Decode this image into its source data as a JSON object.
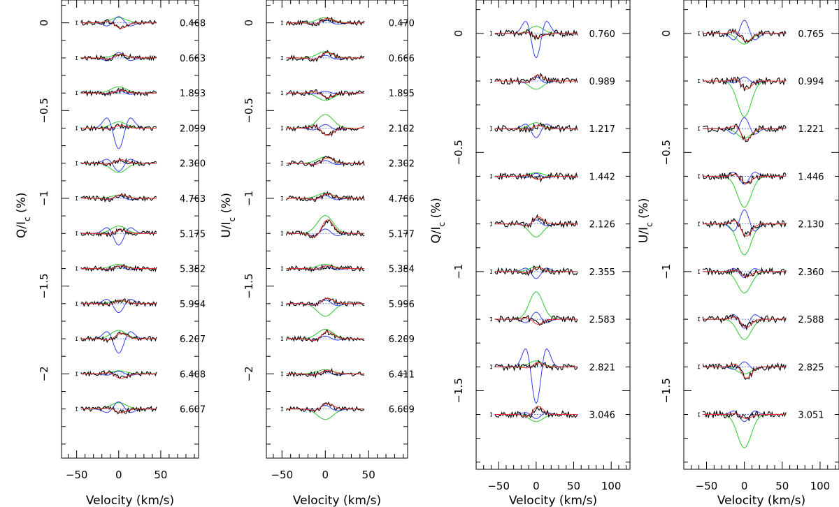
{
  "figure": {
    "xlabel": "Velocity (km/s)",
    "colors": {
      "observed": "#000000",
      "model_red": "#e8302a",
      "model_green": "#2ec62e",
      "model_blue": "#3040e8",
      "zero_line": "#4060e0"
    }
  },
  "chart_data": [
    {
      "type": "line",
      "title": "",
      "xlabel": "Velocity (km/s)",
      "ylabel": "Q/I",
      "ylabel_sub": "c",
      "ylabel_suffix": " (%)",
      "xlim": [
        -68,
        95
      ],
      "ylim": [
        -2.48,
        0.13
      ],
      "x_ticks": [
        -50,
        0,
        50
      ],
      "x_tick_labels": [
        "−50",
        "0",
        "50"
      ],
      "y_ticks": [
        0,
        -0.5,
        -1,
        -1.5,
        -2
      ],
      "y_tick_labels": [
        "0",
        "−0.5",
        "−1",
        "−1.5",
        "−2"
      ],
      "profile_range": [
        -45,
        45
      ],
      "offset_step": -0.2,
      "amplitude_scale": 0.06,
      "label_x": 88,
      "phases": [
        "0.468",
        "0.663",
        "1.893",
        "2.099",
        "2.300",
        "4.763",
        "5.175",
        "5.382",
        "5.994",
        "6.207",
        "6.408",
        "6.607"
      ],
      "blue_amp": [
        0.7,
        0.6,
        0.3,
        -2.3,
        -0.9,
        0.3,
        -1.3,
        0.3,
        -1.0,
        -1.6,
        0.3,
        0.8
      ],
      "green_amp": [
        0.5,
        0.3,
        0.6,
        0.6,
        -0.9,
        0.3,
        0.7,
        0.4,
        0.3,
        0.8,
        0.3,
        0.6
      ],
      "red_amp": [
        -0.6,
        0.4,
        0.3,
        0.3,
        0.4,
        0.4,
        0.4,
        0.3,
        0.4,
        0.6,
        -0.5,
        -0.4
      ]
    },
    {
      "type": "line",
      "title": "",
      "xlabel": "Velocity (km/s)",
      "ylabel": "U/I",
      "ylabel_sub": "c",
      "ylabel_suffix": " (%)",
      "xlim": [
        -68,
        95
      ],
      "ylim": [
        -2.48,
        0.13
      ],
      "x_ticks": [
        -50,
        0,
        50
      ],
      "x_tick_labels": [
        "−50",
        "0",
        "50"
      ],
      "y_ticks": [
        0,
        -0.5,
        -1,
        -1.5,
        -2
      ],
      "y_tick_labels": [
        "0",
        "−0.5",
        "−1",
        "−1.5",
        "−2"
      ],
      "profile_range": [
        -45,
        45
      ],
      "offset_step": -0.2,
      "amplitude_scale": 0.06,
      "label_x": 88,
      "phases": [
        "0.470",
        "0.666",
        "1.895",
        "2.102",
        "2.302",
        "4.766",
        "5.177",
        "5.384",
        "5.996",
        "6.209",
        "6.411",
        "6.609"
      ],
      "blue_amp": [
        0.3,
        0.3,
        0.2,
        0.4,
        0.3,
        0.3,
        0.5,
        0.3,
        0.4,
        0.3,
        0.3,
        0.4
      ],
      "green_amp": [
        0.5,
        0.6,
        -0.7,
        1.3,
        0.6,
        0.5,
        1.7,
        0.4,
        -1.2,
        0.9,
        0.4,
        -1.0
      ],
      "red_amp": [
        0.5,
        0.6,
        -0.5,
        -0.8,
        0.6,
        0.5,
        1.5,
        0.3,
        0.6,
        0.8,
        0.4,
        0.6
      ]
    },
    {
      "type": "line",
      "title": "",
      "xlabel": "Velocity (km/s)",
      "ylabel": "Q/I",
      "ylabel_sub": "c",
      "ylabel_suffix": " (%)",
      "xlim": [
        -80,
        125
      ],
      "ylim": [
        -1.83,
        0.14
      ],
      "x_ticks": [
        -50,
        0,
        50,
        100
      ],
      "x_tick_labels": [
        "−50",
        "0",
        "50",
        "100"
      ],
      "y_ticks": [
        0,
        -0.5,
        -1,
        -1.5
      ],
      "y_tick_labels": [
        "0",
        "−0.5",
        "−1",
        "−1.5"
      ],
      "profile_range": [
        -55,
        55
      ],
      "offset_step": -0.2,
      "amplitude_scale": 0.05,
      "label_x": 88,
      "phases": [
        "0.760",
        "0.989",
        "1.217",
        "1.442",
        "2.126",
        "2.355",
        "2.583",
        "2.821",
        "3.046"
      ],
      "blue_amp": [
        -2.4,
        0.4,
        -0.9,
        0.3,
        0.4,
        -0.7,
        0.7,
        -3.6,
        -0.4
      ],
      "green_amp": [
        0.6,
        -0.7,
        0.5,
        0.3,
        -1.1,
        0.4,
        2.3,
        0.5,
        -0.6
      ],
      "red_amp": [
        -0.4,
        0.6,
        0.3,
        -0.3,
        0.7,
        0.4,
        -0.5,
        0.4,
        0.8
      ]
    },
    {
      "type": "line",
      "title": "",
      "xlabel": "Velocity (km/s)",
      "ylabel": "U/I",
      "ylabel_sub": "c",
      "ylabel_suffix": " (%)",
      "xlim": [
        -80,
        125
      ],
      "ylim": [
        -1.83,
        0.14
      ],
      "x_ticks": [
        -50,
        0,
        50,
        100
      ],
      "x_tick_labels": [
        "−50",
        "0",
        "50",
        "100"
      ],
      "y_ticks": [
        0,
        -0.5,
        -1,
        -1.5
      ],
      "y_tick_labels": [
        "0",
        "−0.5",
        "−1",
        "−1.5"
      ],
      "profile_range": [
        -55,
        55
      ],
      "offset_step": -0.2,
      "amplitude_scale": 0.05,
      "label_x": 88,
      "phases": [
        "0.765",
        "0.994",
        "1.221",
        "1.446",
        "2.130",
        "2.360",
        "2.588",
        "2.825",
        "3.051"
      ],
      "blue_amp": [
        1.3,
        0.4,
        1.1,
        -0.8,
        1.4,
        -0.6,
        -0.9,
        0.5,
        -0.7
      ],
      "green_amp": [
        -0.9,
        -3.0,
        -0.8,
        -2.6,
        -2.6,
        -1.8,
        -1.7,
        -0.6,
        -2.8
      ],
      "red_amp": [
        -0.8,
        -0.8,
        -1.1,
        -0.7,
        -1.2,
        -0.5,
        -0.8,
        -1.1,
        -0.4
      ]
    }
  ]
}
